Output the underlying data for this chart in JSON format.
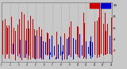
{
  "background_color": "#c8c8c8",
  "plot_bg_color": "#c8c8c8",
  "bar_width": 0.5,
  "n_days": 365,
  "seed": 99,
  "ylim": [
    0,
    105
  ],
  "ytick_vals": [
    20,
    40,
    60,
    80,
    100
  ],
  "ytick_labels": [
    "2",
    "4",
    "6",
    "8",
    "10"
  ],
  "grid_color": "#888888",
  "red_color": "#cc0000",
  "blue_color": "#0000cc",
  "ref": 50,
  "n_months": 13,
  "month_interval": 28
}
